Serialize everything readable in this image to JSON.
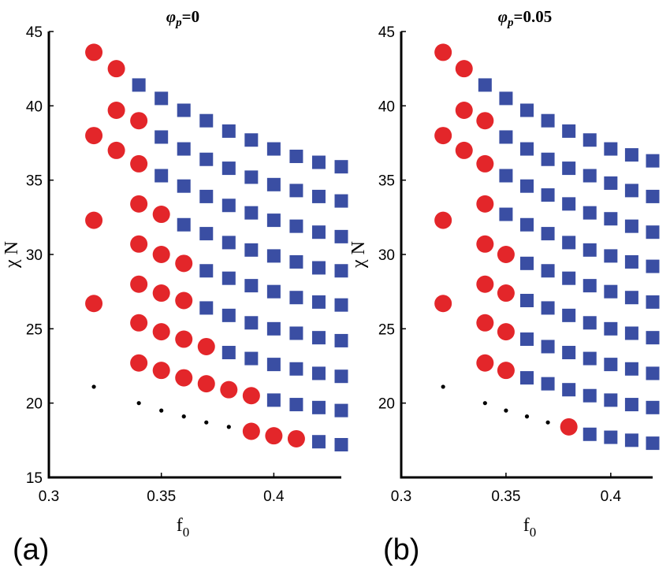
{
  "colors": {
    "disordered": "#e3262a",
    "ordered": "#3a4ea3",
    "spinodal": "#000000"
  },
  "chart_data": [
    {
      "type": "scatter",
      "panel_label": "(a)",
      "title_symbol": "φ",
      "title_sub": "p",
      "title_rest": "=0",
      "xlabel": "f",
      "xlabel_sub": "0",
      "ylabel_greek": "χ",
      "ylabel_rest": " N",
      "xlim": [
        0.3,
        0.43
      ],
      "ylim": [
        15,
        45
      ],
      "xticks": [
        0.3,
        0.35,
        0.4
      ],
      "xtick_labels": [
        "0.3",
        "0.35",
        "0.4"
      ],
      "yticks": [
        15,
        20,
        25,
        30,
        35,
        40,
        45
      ],
      "ytick_labels": [
        "15",
        "20",
        "25",
        "30",
        "35",
        "40",
        "45"
      ],
      "series": [
        {
          "marker": "circle",
          "color": "#e3262a",
          "points": [
            [
              0.32,
              43.6
            ],
            [
              0.33,
              42.5
            ],
            [
              0.33,
              39.7
            ],
            [
              0.34,
              39.0
            ],
            [
              0.32,
              38.0
            ],
            [
              0.33,
              37.0
            ],
            [
              0.34,
              36.1
            ],
            [
              0.32,
              32.3
            ],
            [
              0.34,
              33.4
            ],
            [
              0.35,
              32.7
            ],
            [
              0.34,
              30.7
            ],
            [
              0.35,
              30.0
            ],
            [
              0.36,
              29.4
            ],
            [
              0.34,
              28.0
            ],
            [
              0.35,
              27.4
            ],
            [
              0.36,
              26.9
            ],
            [
              0.32,
              26.7
            ],
            [
              0.34,
              25.4
            ],
            [
              0.35,
              24.8
            ],
            [
              0.36,
              24.3
            ],
            [
              0.37,
              23.8
            ],
            [
              0.34,
              22.7
            ],
            [
              0.35,
              22.2
            ],
            [
              0.36,
              21.7
            ],
            [
              0.37,
              21.3
            ],
            [
              0.38,
              20.9
            ],
            [
              0.39,
              20.5
            ],
            [
              0.39,
              18.1
            ],
            [
              0.4,
              17.8
            ],
            [
              0.41,
              17.6
            ]
          ]
        },
        {
          "marker": "square",
          "color": "#3a4ea3",
          "points": [
            [
              0.34,
              41.4
            ],
            [
              0.35,
              40.5
            ],
            [
              0.36,
              39.7
            ],
            [
              0.37,
              39.0
            ],
            [
              0.38,
              38.3
            ],
            [
              0.39,
              37.7
            ],
            [
              0.4,
              37.1
            ],
            [
              0.41,
              36.6
            ],
            [
              0.42,
              36.2
            ],
            [
              0.43,
              35.9
            ],
            [
              0.35,
              37.9
            ],
            [
              0.36,
              37.1
            ],
            [
              0.37,
              36.4
            ],
            [
              0.38,
              35.8
            ],
            [
              0.39,
              35.2
            ],
            [
              0.4,
              34.7
            ],
            [
              0.41,
              34.3
            ],
            [
              0.42,
              33.9
            ],
            [
              0.43,
              33.6
            ],
            [
              0.35,
              35.3
            ],
            [
              0.36,
              34.6
            ],
            [
              0.37,
              33.9
            ],
            [
              0.38,
              33.3
            ],
            [
              0.39,
              32.8
            ],
            [
              0.4,
              32.3
            ],
            [
              0.41,
              31.9
            ],
            [
              0.42,
              31.5
            ],
            [
              0.43,
              31.2
            ],
            [
              0.36,
              32.0
            ],
            [
              0.37,
              31.4
            ],
            [
              0.38,
              30.8
            ],
            [
              0.39,
              30.3
            ],
            [
              0.4,
              29.9
            ],
            [
              0.41,
              29.5
            ],
            [
              0.42,
              29.1
            ],
            [
              0.43,
              28.9
            ],
            [
              0.37,
              28.9
            ],
            [
              0.38,
              28.4
            ],
            [
              0.39,
              27.9
            ],
            [
              0.4,
              27.5
            ],
            [
              0.41,
              27.1
            ],
            [
              0.42,
              26.8
            ],
            [
              0.43,
              26.6
            ],
            [
              0.37,
              26.4
            ],
            [
              0.38,
              25.9
            ],
            [
              0.39,
              25.4
            ],
            [
              0.4,
              25.0
            ],
            [
              0.41,
              24.7
            ],
            [
              0.42,
              24.4
            ],
            [
              0.43,
              24.2
            ],
            [
              0.38,
              23.4
            ],
            [
              0.39,
              23.0
            ],
            [
              0.4,
              22.6
            ],
            [
              0.41,
              22.3
            ],
            [
              0.42,
              22.0
            ],
            [
              0.43,
              21.8
            ],
            [
              0.4,
              20.2
            ],
            [
              0.41,
              19.9
            ],
            [
              0.42,
              19.7
            ],
            [
              0.43,
              19.5
            ],
            [
              0.42,
              17.4
            ],
            [
              0.43,
              17.2
            ]
          ]
        },
        {
          "marker": "dot",
          "color": "#000000",
          "points": [
            [
              0.32,
              21.1
            ],
            [
              0.34,
              20.0
            ],
            [
              0.35,
              19.5
            ],
            [
              0.36,
              19.1
            ],
            [
              0.37,
              18.7
            ],
            [
              0.38,
              18.4
            ]
          ]
        }
      ]
    },
    {
      "type": "scatter",
      "panel_label": "(b)",
      "title_symbol": "φ",
      "title_sub": "p",
      "title_rest": "=0.05",
      "xlabel": "f",
      "xlabel_sub": "0",
      "ylabel_greek": "χ",
      "ylabel_rest": " N",
      "xlim": [
        0.3,
        0.42
      ],
      "ylim": [
        15,
        45
      ],
      "xticks": [
        0.3,
        0.35,
        0.4
      ],
      "xtick_labels": [
        "0.3",
        "0.35",
        "0.4"
      ],
      "yticks": [
        20,
        25,
        30,
        35,
        40,
        45
      ],
      "ytick_labels": [
        "20",
        "25",
        "30",
        "35",
        "40",
        "45"
      ],
      "series": [
        {
          "marker": "circle",
          "color": "#e3262a",
          "points": [
            [
              0.32,
              43.6
            ],
            [
              0.33,
              42.5
            ],
            [
              0.33,
              39.7
            ],
            [
              0.34,
              39.0
            ],
            [
              0.32,
              38.0
            ],
            [
              0.33,
              37.0
            ],
            [
              0.34,
              36.1
            ],
            [
              0.32,
              32.3
            ],
            [
              0.34,
              33.4
            ],
            [
              0.34,
              30.7
            ],
            [
              0.35,
              30.0
            ],
            [
              0.34,
              28.0
            ],
            [
              0.35,
              27.4
            ],
            [
              0.32,
              26.7
            ],
            [
              0.34,
              25.4
            ],
            [
              0.35,
              24.8
            ],
            [
              0.34,
              22.7
            ],
            [
              0.35,
              22.2
            ],
            [
              0.38,
              18.4
            ]
          ]
        },
        {
          "marker": "square",
          "color": "#3a4ea3",
          "points": [
            [
              0.34,
              41.4
            ],
            [
              0.35,
              40.5
            ],
            [
              0.36,
              39.7
            ],
            [
              0.37,
              39.0
            ],
            [
              0.38,
              38.3
            ],
            [
              0.39,
              37.7
            ],
            [
              0.4,
              37.1
            ],
            [
              0.41,
              36.7
            ],
            [
              0.42,
              36.3
            ],
            [
              0.35,
              37.9
            ],
            [
              0.36,
              37.1
            ],
            [
              0.37,
              36.4
            ],
            [
              0.38,
              35.8
            ],
            [
              0.39,
              35.3
            ],
            [
              0.4,
              34.8
            ],
            [
              0.41,
              34.3
            ],
            [
              0.42,
              33.9
            ],
            [
              0.35,
              35.3
            ],
            [
              0.36,
              34.6
            ],
            [
              0.37,
              34.0
            ],
            [
              0.38,
              33.4
            ],
            [
              0.39,
              32.8
            ],
            [
              0.4,
              32.4
            ],
            [
              0.41,
              31.9
            ],
            [
              0.42,
              31.5
            ],
            [
              0.35,
              32.7
            ],
            [
              0.36,
              32.0
            ],
            [
              0.37,
              31.4
            ],
            [
              0.38,
              30.8
            ],
            [
              0.39,
              30.3
            ],
            [
              0.4,
              29.9
            ],
            [
              0.41,
              29.5
            ],
            [
              0.42,
              29.2
            ],
            [
              0.36,
              29.4
            ],
            [
              0.37,
              28.9
            ],
            [
              0.38,
              28.4
            ],
            [
              0.39,
              27.9
            ],
            [
              0.4,
              27.5
            ],
            [
              0.41,
              27.1
            ],
            [
              0.42,
              26.8
            ],
            [
              0.36,
              26.9
            ],
            [
              0.37,
              26.4
            ],
            [
              0.38,
              25.9
            ],
            [
              0.39,
              25.4
            ],
            [
              0.4,
              25.0
            ],
            [
              0.41,
              24.7
            ],
            [
              0.42,
              24.4
            ],
            [
              0.36,
              24.3
            ],
            [
              0.37,
              23.8
            ],
            [
              0.38,
              23.4
            ],
            [
              0.39,
              23.0
            ],
            [
              0.4,
              22.6
            ],
            [
              0.41,
              22.3
            ],
            [
              0.42,
              22.0
            ],
            [
              0.36,
              21.7
            ],
            [
              0.37,
              21.3
            ],
            [
              0.38,
              20.9
            ],
            [
              0.39,
              20.5
            ],
            [
              0.4,
              20.2
            ],
            [
              0.41,
              19.9
            ],
            [
              0.42,
              19.7
            ],
            [
              0.39,
              17.9
            ],
            [
              0.4,
              17.7
            ],
            [
              0.41,
              17.5
            ],
            [
              0.42,
              17.3
            ]
          ]
        },
        {
          "marker": "dot",
          "color": "#000000",
          "points": [
            [
              0.32,
              21.1
            ],
            [
              0.34,
              20.0
            ],
            [
              0.35,
              19.5
            ],
            [
              0.36,
              19.1
            ],
            [
              0.37,
              18.7
            ]
          ]
        }
      ]
    }
  ]
}
